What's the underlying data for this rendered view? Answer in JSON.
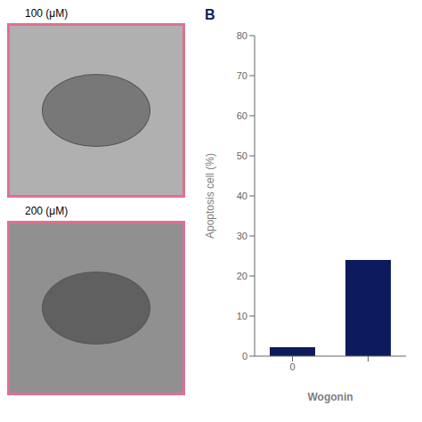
{
  "chart_data": {
    "type": "bar",
    "categories": [
      "0",
      null
    ],
    "values": [
      2.2,
      24.0
    ],
    "color": "#0d1b5e",
    "xlabel": "Wogonin",
    "ylabel": "Apoptosis cell (%)",
    "ylim": [
      0,
      80
    ],
    "yticks": [
      0,
      10,
      20,
      30,
      40,
      50,
      60,
      70,
      80
    ],
    "annotations": [
      "B",
      "100 (μM)",
      "200 (μM)"
    ]
  }
}
